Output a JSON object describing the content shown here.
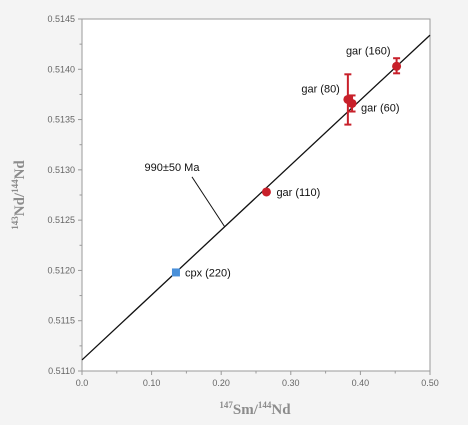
{
  "chart_data": {
    "type": "scatter",
    "xlim": [
      0.0,
      0.5
    ],
    "ylim": [
      0.511,
      0.5145
    ],
    "x_ticks": [
      "0.0",
      "0.10",
      "0.20",
      "0.30",
      "0.40",
      "0.50"
    ],
    "y_ticks": [
      "0.5110",
      "0.5115",
      "0.5120",
      "0.5125",
      "0.5130",
      "0.5135",
      "0.5140",
      "0.5145"
    ],
    "xlabel": {
      "sup1": "147",
      "base1": "Sm/",
      "sup2": "144",
      "base2": "Nd"
    },
    "ylabel": {
      "sup1": "143",
      "base1": "Nd/",
      "sup2": "144",
      "base2": "Nd"
    },
    "grid": false,
    "isochron": {
      "label": "990±50 Ma",
      "color": "#111111",
      "points": [
        {
          "x": 0.0,
          "y": 0.51111
        },
        {
          "x": 0.5,
          "y": 0.51434
        }
      ]
    },
    "points": [
      {
        "name": "cpx (220)",
        "x": 0.135,
        "y": 0.51198,
        "marker": "square",
        "color": "#4a90d9",
        "err_low": null,
        "err_high": null
      },
      {
        "name": "gar (110)",
        "x": 0.265,
        "y": 0.51278,
        "marker": "circle",
        "color": "#c8202a",
        "err_low": null,
        "err_high": null
      },
      {
        "name": "gar (80)",
        "x": 0.382,
        "y": 0.5137,
        "marker": "circle",
        "color": "#c8202a",
        "err_low": 0.51345,
        "err_high": 0.51395
      },
      {
        "name": "gar (60)",
        "x": 0.388,
        "y": 0.51366,
        "marker": "circle",
        "color": "#c8202a",
        "err_low": 0.51358,
        "err_high": 0.51374
      },
      {
        "name": "gar (160)",
        "x": 0.452,
        "y": 0.51403,
        "marker": "circle",
        "color": "#c8202a",
        "err_low": 0.51396,
        "err_high": 0.51411
      }
    ]
  }
}
